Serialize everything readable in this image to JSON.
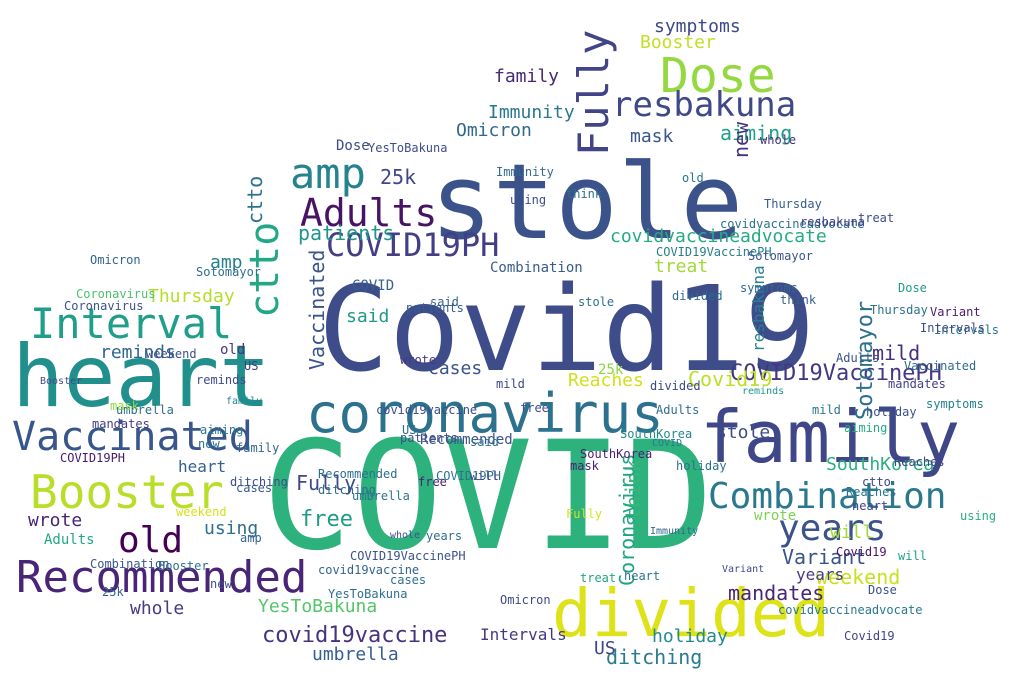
{
  "word_cloud": {
    "words": [
      {
        "text": "COVID",
        "color": "#2db27d"
      },
      {
        "text": "Covid19",
        "color": "#3e4c8a"
      },
      {
        "text": "stole",
        "color": "#3b528b"
      },
      {
        "text": "heart",
        "color": "#21908d"
      },
      {
        "text": "family",
        "color": "#3f4788"
      },
      {
        "text": "divided",
        "color": "#dde318"
      },
      {
        "text": "coronavirus",
        "color": "#2c718e"
      },
      {
        "text": "Recommended",
        "color": "#482576"
      },
      {
        "text": "Vaccinated",
        "color": "#39568c"
      },
      {
        "text": "Booster",
        "color": "#b8de29"
      },
      {
        "text": "Dose",
        "color": "#95d840"
      },
      {
        "text": "resbakuna",
        "color": "#3f4889"
      },
      {
        "text": "Interval",
        "color": "#1f9e89"
      },
      {
        "text": "Adults",
        "color": "#471365"
      },
      {
        "text": "amp",
        "color": "#25838e"
      },
      {
        "text": "COVID19PH",
        "color": "#433e85"
      },
      {
        "text": "Fully",
        "color": "#414487"
      },
      {
        "text": "Combination",
        "color": "#2a788e"
      },
      {
        "text": "years",
        "color": "#3b528b"
      },
      {
        "text": "old",
        "color": "#440154"
      },
      {
        "text": "covidvaccineadvocate",
        "color": "#25ab82"
      },
      {
        "text": "COVID19VaccinePH",
        "color": "#453781"
      },
      {
        "text": "covid19vaccine",
        "color": "#46337e"
      },
      {
        "text": "ctto",
        "color": "#22a884"
      },
      {
        "text": "Omicron",
        "color": "#31688e"
      },
      {
        "text": "Immunity",
        "color": "#2a788e"
      },
      {
        "text": "family",
        "color": "#482878"
      },
      {
        "text": "symptoms",
        "color": "#3e4989"
      },
      {
        "text": "Booster",
        "color": "#c2df23"
      },
      {
        "text": "mask",
        "color": "#39558c"
      },
      {
        "text": "aiming",
        "color": "#1fa188"
      },
      {
        "text": "Sotomayor",
        "color": "#2d708e"
      },
      {
        "text": "25k",
        "color": "#404688"
      },
      {
        "text": "patients",
        "color": "#1f968b"
      },
      {
        "text": "Thursday",
        "color": "#b5de2b"
      },
      {
        "text": "Reaches",
        "color": "#d0e11c"
      },
      {
        "text": "Covid19",
        "color": "#bddf26"
      },
      {
        "text": "treat",
        "color": "#a0da39"
      },
      {
        "text": "mild",
        "color": "#46307e"
      },
      {
        "text": "said",
        "color": "#1f9a8a"
      },
      {
        "text": "reminds",
        "color": "#32658e"
      },
      {
        "text": "cases",
        "color": "#3a538b"
      },
      {
        "text": "whole",
        "color": "#443b84"
      },
      {
        "text": "mandates",
        "color": "#482677"
      },
      {
        "text": "weekend",
        "color": "#c8e020"
      },
      {
        "text": "SouthKorea",
        "color": "#2ab07f"
      },
      {
        "text": "YesToBakuna",
        "color": "#54c568"
      },
      {
        "text": "umbrella",
        "color": "#355f8d"
      },
      {
        "text": "ditching",
        "color": "#297b8e"
      },
      {
        "text": "holiday",
        "color": "#238a8d"
      },
      {
        "text": "US",
        "color": "#404588"
      },
      {
        "text": "Intervals",
        "color": "#453882"
      },
      {
        "text": "Variant",
        "color": "#39568c"
      },
      {
        "text": "wrote",
        "color": "#482475"
      },
      {
        "text": "using",
        "color": "#2e6e8e"
      },
      {
        "text": "will",
        "color": "#9fda3a"
      },
      {
        "text": "think",
        "color": "#35b779"
      },
      {
        "text": "new",
        "color": "#46327e"
      },
      {
        "text": "free",
        "color": "#1e9b8a"
      },
      {
        "text": "Coronavirus",
        "color": "#20a486"
      },
      {
        "text": "COVID",
        "color": "#355f8d"
      },
      {
        "text": "Adults",
        "color": "#22a785"
      },
      {
        "text": "Dose",
        "color": "#3e4a89"
      },
      {
        "text": "heart",
        "color": "#33638d"
      },
      {
        "text": "stole",
        "color": "#3d4d8a"
      },
      {
        "text": "ctto",
        "color": "#2c728e"
      },
      {
        "text": "amp",
        "color": "#277f8e"
      },
      {
        "text": "Fully",
        "color": "#3f4889"
      },
      {
        "text": "years",
        "color": "#433d84"
      },
      {
        "text": "Vaccinated",
        "color": "#3a548c"
      },
      {
        "text": "resbakuna",
        "color": "#26828e"
      },
      {
        "text": "Sotomayor",
        "color": "#2e6f8e"
      },
      {
        "text": "whole",
        "color": "#472f7d"
      },
      {
        "text": "old",
        "color": "#453781"
      },
      {
        "text": "holiday",
        "color": "#3b518b"
      },
      {
        "text": "Variant",
        "color": "#481c6e"
      },
      {
        "text": "SouthKorea",
        "color": "#23888e"
      },
      {
        "text": "Immunity",
        "color": "#2f6c8e"
      },
      {
        "text": "Omicron",
        "color": "#33638d"
      },
      {
        "text": "patients",
        "color": "#3b528b"
      },
      {
        "text": "reminds",
        "color": "#3e4a89"
      },
      {
        "text": "aiming",
        "color": "#25ab82"
      },
      {
        "text": "ditching",
        "color": "#306a8e"
      },
      {
        "text": "umbrella",
        "color": "#2b758e"
      },
      {
        "text": "mandates",
        "color": "#424086"
      },
      {
        "text": "symptoms",
        "color": "#31678e"
      },
      {
        "text": "25k",
        "color": "#8bd646"
      },
      {
        "text": "cases",
        "color": "#2d708e"
      },
      {
        "text": "mask",
        "color": "#482173"
      },
      {
        "text": "treat",
        "color": "#20a486"
      },
      {
        "text": "think",
        "color": "#34618d"
      },
      {
        "text": "wrote",
        "color": "#7ad151"
      },
      {
        "text": "using",
        "color": "#3c4f8a"
      },
      {
        "text": "Thursday",
        "color": "#2c728e"
      },
      {
        "text": "Reaches",
        "color": "#414487"
      },
      {
        "text": "covid19vaccine",
        "color": "#3e4c8a"
      },
      {
        "text": "COVID19VaccinePH",
        "color": "#277f8e"
      },
      {
        "text": "covidvaccineadvocate",
        "color": "#2c718e"
      },
      {
        "text": "Recommended",
        "color": "#3b528b"
      },
      {
        "text": "Combination",
        "color": "#365c8d"
      },
      {
        "text": "Coronavirus",
        "color": "#4ac16d"
      },
      {
        "text": "YesToBakuna",
        "color": "#3d4e8a"
      },
      {
        "text": "Intervals",
        "color": "#2a768e"
      },
      {
        "text": "COVID19PH",
        "color": "#481a6c"
      },
      {
        "text": "Booster",
        "color": "#3e4a89"
      },
      {
        "text": "weekend",
        "color": "#3b518b"
      },
      {
        "text": "divided",
        "color": "#2f6b8e"
      },
      {
        "text": "family",
        "color": "#24878e"
      },
      {
        "text": "heart",
        "color": "#404588"
      },
      {
        "text": "mild",
        "color": "#2a778e"
      },
      {
        "text": "said",
        "color": "#34618d"
      },
      {
        "text": "free",
        "color": "#3d4d8a"
      },
      {
        "text": "new",
        "color": "#2c718e"
      },
      {
        "text": "US",
        "color": "#453882"
      },
      {
        "text": "will",
        "color": "#1fa287"
      },
      {
        "text": "Covid19",
        "color": "#481467"
      },
      {
        "text": "Dose",
        "color": "#1e9c89"
      },
      {
        "text": "Adults",
        "color": "#3a538b"
      },
      {
        "text": "stole",
        "color": "#2d718e"
      },
      {
        "text": "COVID",
        "color": "#2a788e"
      },
      {
        "text": "Fully",
        "color": "#d8e219"
      },
      {
        "text": "ctto",
        "color": "#3f4788"
      },
      {
        "text": "amp",
        "color": "#32658e"
      },
      {
        "text": "years",
        "color": "#2e6d8e"
      },
      {
        "text": "old",
        "color": "#2a768e"
      },
      {
        "text": "resbakuna",
        "color": "#433e85"
      },
      {
        "text": "Vaccinated",
        "color": "#2f6c8e"
      },
      {
        "text": "Sotomayor",
        "color": "#3b528b"
      },
      {
        "text": "symptoms",
        "color": "#26818e"
      },
      {
        "text": "Omicron",
        "color": "#3e4989"
      },
      {
        "text": "patients",
        "color": "#365c8d"
      },
      {
        "text": "SouthKorea",
        "color": "#481f70"
      },
      {
        "text": "Immunity",
        "color": "#31668e"
      },
      {
        "text": "holiday",
        "color": "#2d708e"
      },
      {
        "text": "whole",
        "color": "#3b518b"
      },
      {
        "text": "reminds",
        "color": "#1f958b"
      },
      {
        "text": "Variant",
        "color": "#3f4788"
      },
      {
        "text": "aiming",
        "color": "#2a788e"
      },
      {
        "text": "ditching",
        "color": "#3c4f8a"
      },
      {
        "text": "mandates",
        "color": "#433d84"
      },
      {
        "text": "umbrella",
        "color": "#2e6e8e"
      },
      {
        "text": "cases",
        "color": "#38588c"
      },
      {
        "text": "25k",
        "color": "#31678e"
      },
      {
        "text": "mask",
        "color": "#8fd744"
      },
      {
        "text": "treat",
        "color": "#3d4d8a"
      },
      {
        "text": "think",
        "color": "#2c728e"
      },
      {
        "text": "using",
        "color": "#29af7f"
      },
      {
        "text": "wrote",
        "color": "#453781"
      },
      {
        "text": "Thursday",
        "color": "#365c8d"
      },
      {
        "text": "Reaches",
        "color": "#2b758e"
      },
      {
        "text": "Coronavirus",
        "color": "#3a548c"
      },
      {
        "text": "YesToBakuna",
        "color": "#2e6f8e"
      },
      {
        "text": "Intervals",
        "color": "#3e4c8a"
      },
      {
        "text": "Booster",
        "color": "#2c718e"
      },
      {
        "text": "weekend",
        "color": "#d5e21a"
      },
      {
        "text": "covid19vaccine",
        "color": "#33638d"
      },
      {
        "text": "COVID19VaccinePH",
        "color": "#3b528b"
      },
      {
        "text": "covidvaccineadvocate",
        "color": "#2a788e"
      },
      {
        "text": "Recommended",
        "color": "#2d708e"
      },
      {
        "text": "Combination",
        "color": "#38598c"
      },
      {
        "text": "COVID19PH",
        "color": "#2c728e"
      },
      {
        "text": "Covid19",
        "color": "#404688"
      },
      {
        "text": "divided",
        "color": "#3e4989"
      },
      {
        "text": "family",
        "color": "#31668e"
      },
      {
        "text": "heart",
        "color": "#2a768e"
      },
      {
        "text": "Dose",
        "color": "#3c4f8a"
      },
      {
        "text": "Adults",
        "color": "#2e6e8e"
      },
      {
        "text": "mild",
        "color": "#3f4889"
      },
      {
        "text": "said",
        "color": "#2b758e"
      },
      {
        "text": "free",
        "color": "#482475"
      },
      {
        "text": "new",
        "color": "#3b528b"
      },
      {
        "text": "US",
        "color": "#2f6b8e"
      },
      {
        "text": "will",
        "color": "#3e4a89"
      }
    ]
  }
}
